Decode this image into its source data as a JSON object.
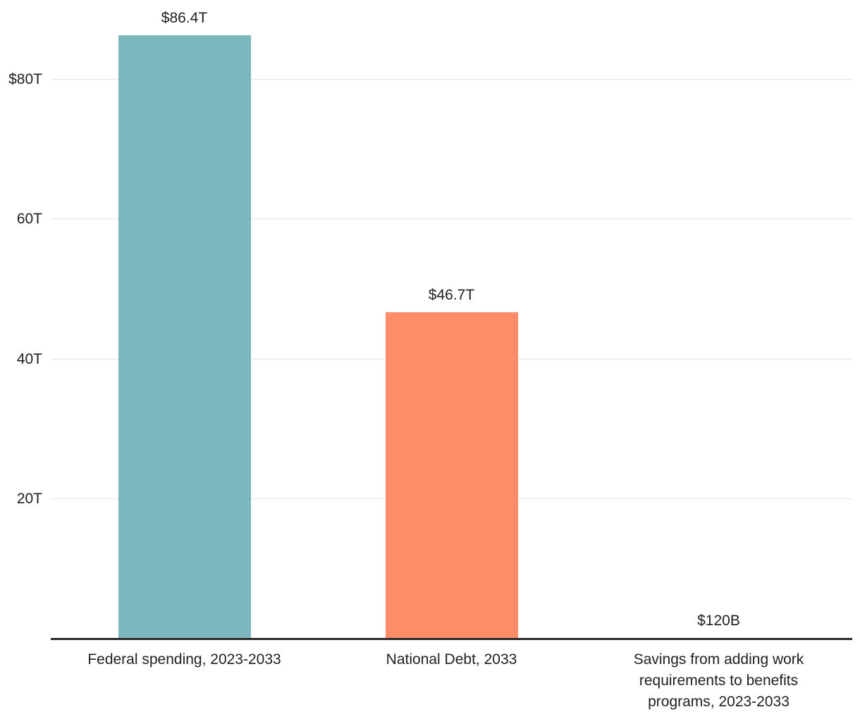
{
  "chart_data": {
    "type": "bar",
    "title": "",
    "xlabel": "",
    "ylabel": "",
    "unit": "trillions of US dollars",
    "categories": [
      "Federal spending, 2023-2033",
      "National Debt, 2033",
      "Savings from adding work\nrequirements to benefits\nprograms, 2023-2033"
    ],
    "values": [
      86.4,
      46.7,
      0.12
    ],
    "value_labels": [
      "$86.4T",
      "$46.7T",
      "$120B"
    ],
    "bar_colors": [
      "#7cb7c0",
      "#fd8c69",
      "#7cb7c0"
    ],
    "yticks": [
      {
        "value": 20,
        "label": "20T"
      },
      {
        "value": 40,
        "label": "40T"
      },
      {
        "value": 60,
        "label": "60T"
      },
      {
        "value": 80,
        "label": "$80T"
      }
    ],
    "ylim": [
      0,
      91.4
    ],
    "grid": true,
    "legend": "none",
    "colors": {
      "background": "#ffffff",
      "grid": "#e4e4e4",
      "axis": "#2b2b2b",
      "text": "#1f1f1f"
    }
  }
}
